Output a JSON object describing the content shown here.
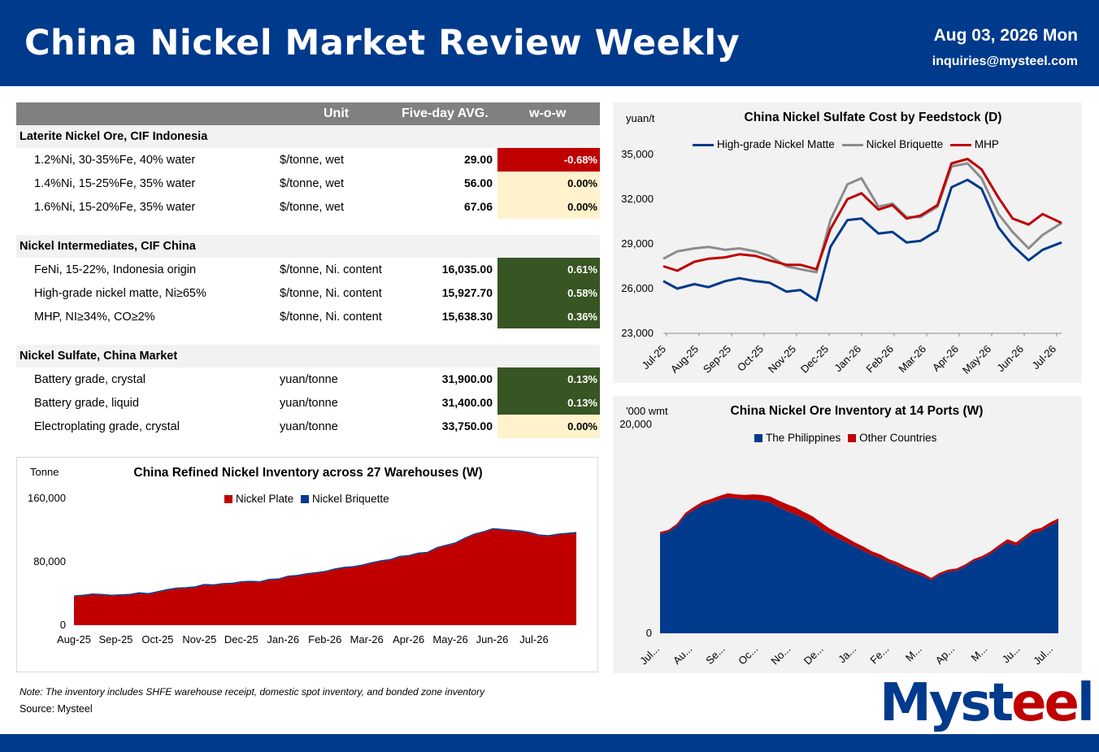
{
  "header": {
    "title": "China Nickel Market Review Weekly",
    "date": "Aug 03, 2026 Mon",
    "email": "inquiries@mysteel.com"
  },
  "table": {
    "columns": {
      "unit": "Unit",
      "avg": "Five-day AVG.",
      "wow": "w-o-w"
    },
    "groups": [
      {
        "title": "Laterite Nickel Ore, CIF Indonesia",
        "rows": [
          {
            "name": "1.2%Ni, 30-35%Fe, 40% water",
            "unit": "$/tonne, wet",
            "avg": "29.00",
            "wow": "-0.68%",
            "wow_status": "neg"
          },
          {
            "name": "1.4%Ni, 15-25%Fe, 35% water",
            "unit": "$/tonne, wet",
            "avg": "56.00",
            "wow": "0.00%",
            "wow_status": "zero"
          },
          {
            "name": "1.6%Ni, 15-20%Fe, 35% water",
            "unit": "$/tonne, wet",
            "avg": "67.06",
            "wow": "0.00%",
            "wow_status": "zero"
          }
        ]
      },
      {
        "title": "Nickel Intermediates, CIF China",
        "rows": [
          {
            "name": "FeNi, 15-22%, Indonesia origin",
            "unit": "$/tonne, Ni. content",
            "avg": "16,035.00",
            "wow": "0.61%",
            "wow_status": "pos"
          },
          {
            "name": "High-grade nickel matte, Ni≥65%",
            "unit": "$/tonne, Ni. content",
            "avg": "15,927.70",
            "wow": "0.58%",
            "wow_status": "pos"
          },
          {
            "name": "MHP, NI≥34%, CO≥2%",
            "unit": "$/tonne, Ni. content",
            "avg": "15,638.30",
            "wow": "0.36%",
            "wow_status": "pos"
          }
        ]
      },
      {
        "title": "Nickel Sulfate, China Market",
        "rows": [
          {
            "name": "Battery grade, crystal",
            "unit": "yuan/tonne",
            "avg": "31,900.00",
            "wow": "0.13%",
            "wow_status": "pos"
          },
          {
            "name": "Battery grade, liquid",
            "unit": "yuan/tonne",
            "avg": "31,400.00",
            "wow": "0.13%",
            "wow_status": "pos"
          },
          {
            "name": "Electroplating grade, crystal",
            "unit": "yuan/tonne",
            "avg": "33,750.00",
            "wow": "0.00%",
            "wow_status": "zero"
          }
        ]
      }
    ]
  },
  "colors": {
    "brand": "#003a8c",
    "red": "#c00000",
    "green": "#375623",
    "yellow": "#fff2cc",
    "gray": "#8c8c8c"
  },
  "chart_data": [
    {
      "type": "line",
      "title": "China Nickel Sulfate Cost by Feedstock (D)",
      "ylabel": "yuan/t",
      "ylim": [
        23000,
        35000
      ],
      "yticks": [
        "23,000",
        "26,000",
        "29,000",
        "32,000",
        "35,000"
      ],
      "xticks": [
        "Jul-25",
        "Aug-25",
        "Sep-25",
        "Oct-25",
        "Nov-25",
        "Dec-25",
        "Jan-26",
        "Feb-26",
        "Mar-26",
        "Apr-26",
        "May-26",
        "Jun-26",
        "Jul-26"
      ],
      "x_dates": [
        "2025-07-01",
        "2025-07-15",
        "2025-08-01",
        "2025-08-15",
        "2025-09-01",
        "2025-09-15",
        "2025-10-01",
        "2025-10-15",
        "2025-11-01",
        "2025-11-15",
        "2025-12-01",
        "2025-12-15",
        "2026-01-01",
        "2026-01-15",
        "2026-02-01",
        "2026-02-15",
        "2026-03-01",
        "2026-03-15",
        "2026-04-01",
        "2026-04-15",
        "2026-05-01",
        "2026-05-15",
        "2026-06-01",
        "2026-06-15",
        "2026-07-01",
        "2026-07-15",
        "2026-08-03"
      ],
      "legend": "top",
      "series": [
        {
          "name": "High-grade Nickel Matte",
          "color": "#003a8c",
          "values": [
            26500,
            26000,
            26300,
            26100,
            26500,
            26700,
            26500,
            26400,
            25800,
            25900,
            25200,
            28800,
            30600,
            30700,
            29700,
            29800,
            29100,
            29200,
            29900,
            32800,
            33300,
            32700,
            30100,
            28900,
            27900,
            28600,
            29100
          ]
        },
        {
          "name": "Nickel Briquette",
          "color": "#8c8c8c",
          "values": [
            28000,
            28500,
            28700,
            28800,
            28600,
            28700,
            28500,
            28200,
            27500,
            27300,
            27100,
            30600,
            33000,
            33400,
            31500,
            31700,
            30800,
            30800,
            31500,
            34200,
            34400,
            33400,
            31000,
            29800,
            28700,
            29600,
            30400
          ]
        },
        {
          "name": "MHP",
          "color": "#c00000",
          "values": [
            27500,
            27200,
            27800,
            28000,
            28100,
            28300,
            28200,
            27900,
            27600,
            27600,
            27300,
            30000,
            32000,
            32400,
            31300,
            31600,
            30700,
            30900,
            31600,
            34400,
            34700,
            34000,
            32100,
            30700,
            30300,
            31000,
            30400
          ]
        }
      ]
    },
    {
      "type": "area",
      "title": "China Nickel Ore Inventory at 14 Ports (W)",
      "ylabel": "'000 wmt",
      "ylim": [
        0,
        20000
      ],
      "yticks": [
        "0",
        "20,000"
      ],
      "xticks": [
        "Jul...",
        "Au...",
        "Se...",
        "Oc...",
        "No...",
        "De...",
        "Ja...",
        "Fe...",
        "M...",
        "Ap...",
        "M...",
        "Ju...",
        "Jul..."
      ],
      "legend": "top",
      "series": [
        {
          "name": "The Philippines",
          "color": "#003a8c",
          "values": [
            9500,
            9700,
            10300,
            11300,
            11800,
            12300,
            12500,
            12800,
            13000,
            12900,
            12800,
            12800,
            12700,
            12500,
            12100,
            11700,
            11400,
            11000,
            10600,
            10000,
            9500,
            9100,
            8700,
            8300,
            7900,
            7500,
            7200,
            6800,
            6500,
            6100,
            5800,
            5500,
            5100,
            5600,
            5900,
            6000,
            6400,
            6900,
            7200,
            7600,
            8200,
            8700,
            8400,
            9000,
            9600,
            9800,
            10300,
            10700
          ]
        },
        {
          "name": "Other Countries",
          "color": "#c00000",
          "values": [
            200,
            200,
            200,
            250,
            300,
            300,
            350,
            350,
            400,
            400,
            450,
            500,
            550,
            600,
            600,
            650,
            650,
            600,
            600,
            600,
            550,
            500,
            450,
            400,
            400,
            350,
            350,
            300,
            300,
            300,
            250,
            250,
            200,
            200,
            200,
            200,
            200,
            200,
            200,
            250,
            250,
            300,
            300,
            300,
            300,
            300,
            300,
            300
          ]
        }
      ]
    },
    {
      "type": "area",
      "title": "China Refined Nickel Inventory across 27 Warehouses (W)",
      "ylabel": "Tonne",
      "ylim": [
        0,
        160000
      ],
      "yticks": [
        "0",
        "80,000",
        "160,000"
      ],
      "xticks": [
        "Aug-25",
        "Sep-25",
        "Oct-25",
        "Nov-25",
        "Dec-25",
        "Jan-26",
        "Feb-26",
        "Mar-26",
        "Apr-26",
        "May-26",
        "Jun-26",
        "Jul-26"
      ],
      "legend": "top",
      "series": [
        {
          "name": "Nickel Plate",
          "color": "#c00000",
          "values": [
            36000,
            37000,
            38500,
            38000,
            37000,
            37500,
            38000,
            40000,
            39000,
            41500,
            44000,
            46000,
            46500,
            47500,
            50500,
            50000,
            51500,
            52000,
            54000,
            54500,
            54000,
            57000,
            57500,
            61000,
            62000,
            64000,
            65500,
            67000,
            70000,
            72000,
            73000,
            75000,
            78000,
            80500,
            82000,
            86000,
            87000,
            90000,
            91000,
            97000,
            100000,
            103000,
            109000,
            114000,
            117000,
            121000,
            120000,
            119000,
            118000,
            116000,
            113000,
            112000,
            114000,
            115000,
            116000
          ]
        },
        {
          "name": "Nickel Briquette",
          "color": "#003a8c",
          "values": [
            1500,
            1500,
            1500,
            1500,
            1500,
            1500,
            1500,
            1500,
            1500,
            1500,
            1500,
            1500,
            1500,
            1500,
            1500,
            1500,
            1500,
            1500,
            1500,
            1500,
            1500,
            1500,
            1500,
            1500,
            1500,
            1500,
            1500,
            1500,
            1500,
            1500,
            1500,
            1500,
            1500,
            1500,
            1500,
            1500,
            1500,
            1500,
            1500,
            1500,
            1500,
            1500,
            1500,
            1500,
            1500,
            1500,
            1500,
            1500,
            1500,
            1500,
            1500,
            1500,
            1500,
            1500,
            1500
          ]
        }
      ]
    }
  ],
  "footer": {
    "note": "Note: The inventory includes SHFE warehouse receipt, domestic spot inventory, and bonded zone inventory",
    "source": "Source: Mysteel",
    "logo_a": "Myst",
    "logo_b": "ee",
    "logo_c": "l"
  }
}
